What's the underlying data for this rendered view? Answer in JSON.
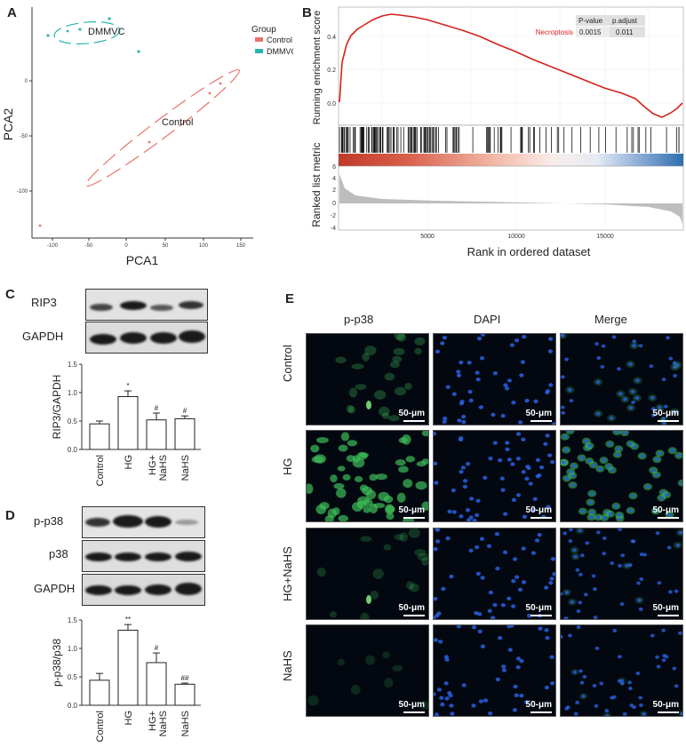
{
  "panels": {
    "A": "A",
    "B": "B",
    "C": "C",
    "D": "D",
    "E": "E"
  },
  "colors": {
    "control": "#e8736c",
    "dmmvc": "#26b6b0",
    "red_line": "#d4221b",
    "heat_red": "#c0392b",
    "heat_blue": "#2e6eb0",
    "green_fluor": "#3fbf5a",
    "blue_fluor": "#2a5fe0"
  },
  "panelA": {
    "xlabel": "PCA1",
    "ylabel": "PCA2",
    "legend_title": "Group",
    "legend_items": [
      "Control",
      "DMMVC"
    ],
    "annot_dmmvc": "DMMVC",
    "annot_control": "Control",
    "xticks": [
      "-100",
      "-50",
      "0",
      "50",
      "100",
      "150"
    ],
    "yticks": [
      "0",
      "-50",
      "-100"
    ]
  },
  "panelB": {
    "ylabel_top": "Running enrichment score",
    "ylabel_bottom": "Ranked list metric",
    "xlabel": "Rank in ordered dataset",
    "table_headers": [
      "P-value",
      "p.adjust"
    ],
    "pathway": "Necroptosis",
    "pvalue": "0.0015",
    "padjust": "0.011",
    "es_ticks": [
      "0.4",
      "0.2",
      "0.0"
    ],
    "metric_ticks": [
      "6",
      "4",
      "2",
      "0",
      "-2",
      "-4"
    ],
    "xticks": [
      "5000",
      "10000",
      "15000"
    ]
  },
  "panelC": {
    "blot_labels": [
      "RIP3",
      "GAPDH"
    ],
    "ylabel": "RIP3/GAPDH",
    "yticks": [
      "0.0",
      "0.5",
      "1.0",
      "1.5"
    ],
    "categories": [
      "Control",
      "HG",
      "HG+\nNaHS",
      "NaHS"
    ],
    "values": [
      0.45,
      0.93,
      0.52,
      0.54
    ],
    "errors": [
      0.05,
      0.1,
      0.12,
      0.05
    ],
    "marks": [
      "",
      "*",
      "#",
      "#"
    ],
    "ylim": [
      0,
      1.5
    ]
  },
  "panelD": {
    "blot_labels": [
      "p-p38",
      "p38",
      "GAPDH"
    ],
    "ylabel": "p-p38/p38",
    "yticks": [
      "0.0",
      "0.5",
      "1.0",
      "1.5"
    ],
    "categories": [
      "Control",
      "HG",
      "HG+\nNaHS",
      "NaHS"
    ],
    "values": [
      0.44,
      1.32,
      0.75,
      0.37
    ],
    "errors": [
      0.12,
      0.1,
      0.17,
      0.02
    ],
    "marks": [
      "",
      "**",
      "#",
      "##"
    ],
    "ylim": [
      0,
      1.5
    ]
  },
  "panelE": {
    "col_headers": [
      "p-p38",
      "DAPI",
      "Merge"
    ],
    "row_labels": [
      "Control",
      "HG",
      "HG+NaHS",
      "NaHS"
    ],
    "scale": "50-μm"
  }
}
